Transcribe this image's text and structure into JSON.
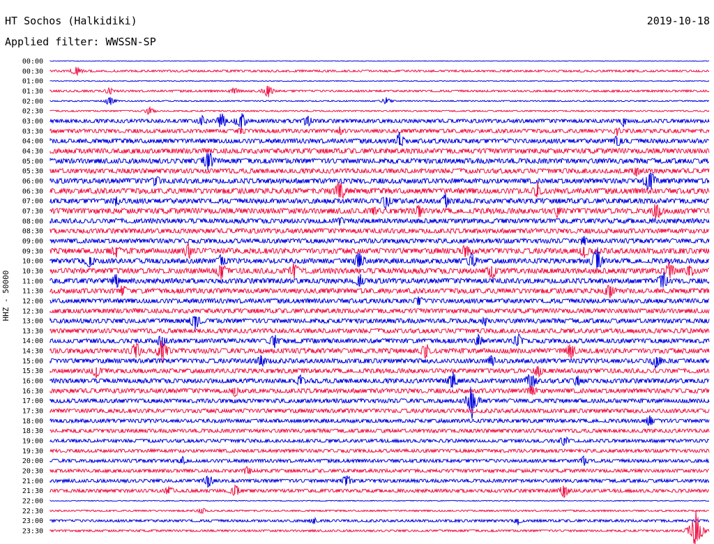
{
  "header": {
    "station": "HT Sochos (Halkidiki)",
    "date": "2019-10-18",
    "filter": "Applied filter: WWSSN-SP"
  },
  "colors": {
    "even_row": "#0000dd",
    "odd_row": "#ee1144"
  },
  "chart_data": {
    "type": "line",
    "title": "HT Sochos (Halkidiki)",
    "subtitle": "Applied filter: WWSSN-SP",
    "date": "2019-10-18",
    "ylabel": "HHZ - 50000",
    "xlabel": "",
    "grid": false,
    "row_minutes": 30,
    "rows": [
      "00:00",
      "00:30",
      "01:00",
      "01:30",
      "02:00",
      "02:30",
      "03:00",
      "03:30",
      "04:00",
      "04:30",
      "05:00",
      "05:30",
      "06:00",
      "06:30",
      "07:00",
      "07:30",
      "08:00",
      "08:30",
      "09:00",
      "09:30",
      "10:00",
      "10:30",
      "11:00",
      "11:30",
      "12:00",
      "12:30",
      "13:00",
      "13:30",
      "14:00",
      "14:30",
      "15:00",
      "15:30",
      "16:00",
      "16:30",
      "17:00",
      "17:30",
      "18:00",
      "18:30",
      "19:00",
      "19:30",
      "20:00",
      "20:30",
      "21:00",
      "21:30",
      "22:00",
      "22:30",
      "23:00",
      "23:30"
    ],
    "noise_levels": [
      0.3,
      1.0,
      0.4,
      1.0,
      0.6,
      0.7,
      1.8,
      1.9,
      2.2,
      2.4,
      2.4,
      2.3,
      2.4,
      2.6,
      2.4,
      2.6,
      2.3,
      2.3,
      2.2,
      2.6,
      2.4,
      2.6,
      2.4,
      2.4,
      2.2,
      2.2,
      2.2,
      2.2,
      2.2,
      2.4,
      2.2,
      2.2,
      2.2,
      2.2,
      2.0,
      2.0,
      1.8,
      1.8,
      1.6,
      1.6,
      1.6,
      1.6,
      1.6,
      1.6,
      0.4,
      0.8,
      1.2,
      1.0
    ],
    "events": [
      {
        "row": 1,
        "x": 0.04,
        "amp": 6
      },
      {
        "row": 3,
        "x": 0.09,
        "amp": 4
      },
      {
        "row": 3,
        "x": 0.28,
        "amp": 5
      },
      {
        "row": 3,
        "x": 0.33,
        "amp": 7
      },
      {
        "row": 4,
        "x": 0.09,
        "amp": 5
      },
      {
        "row": 4,
        "x": 0.51,
        "amp": 4
      },
      {
        "row": 5,
        "x": 0.15,
        "amp": 5
      },
      {
        "row": 6,
        "x": 0.23,
        "amp": 6
      },
      {
        "row": 6,
        "x": 0.26,
        "amp": 9
      },
      {
        "row": 6,
        "x": 0.29,
        "amp": 11
      },
      {
        "row": 6,
        "x": 0.39,
        "amp": 7
      },
      {
        "row": 6,
        "x": 0.87,
        "amp": 6
      },
      {
        "row": 7,
        "x": 0.29,
        "amp": 5
      },
      {
        "row": 7,
        "x": 0.44,
        "amp": 5
      },
      {
        "row": 7,
        "x": 0.86,
        "amp": 5
      },
      {
        "row": 8,
        "x": 0.53,
        "amp": 9
      },
      {
        "row": 8,
        "x": 0.86,
        "amp": 8
      },
      {
        "row": 10,
        "x": 0.24,
        "amp": 13
      },
      {
        "row": 11,
        "x": 0.89,
        "amp": 6
      },
      {
        "row": 12,
        "x": 0.16,
        "amp": 7
      },
      {
        "row": 12,
        "x": 0.91,
        "amp": 14
      },
      {
        "row": 13,
        "x": 0.44,
        "amp": 13
      },
      {
        "row": 13,
        "x": 0.74,
        "amp": 9
      },
      {
        "row": 14,
        "x": 0.1,
        "amp": 6
      },
      {
        "row": 14,
        "x": 0.51,
        "amp": 9
      },
      {
        "row": 14,
        "x": 0.6,
        "amp": 8
      },
      {
        "row": 15,
        "x": 0.49,
        "amp": 6
      },
      {
        "row": 15,
        "x": 0.56,
        "amp": 8
      },
      {
        "row": 15,
        "x": 0.77,
        "amp": 7
      },
      {
        "row": 15,
        "x": 0.92,
        "amp": 11
      },
      {
        "row": 16,
        "x": 0.44,
        "amp": 5
      },
      {
        "row": 18,
        "x": 0.81,
        "amp": 6
      },
      {
        "row": 19,
        "x": 0.1,
        "amp": 8
      },
      {
        "row": 19,
        "x": 0.21,
        "amp": 9
      },
      {
        "row": 19,
        "x": 0.63,
        "amp": 8
      },
      {
        "row": 19,
        "x": 0.81,
        "amp": 9
      },
      {
        "row": 20,
        "x": 0.06,
        "amp": 9
      },
      {
        "row": 20,
        "x": 0.26,
        "amp": 8
      },
      {
        "row": 20,
        "x": 0.47,
        "amp": 11
      },
      {
        "row": 20,
        "x": 0.64,
        "amp": 9
      },
      {
        "row": 20,
        "x": 0.83,
        "amp": 15
      },
      {
        "row": 21,
        "x": 0.26,
        "amp": 10
      },
      {
        "row": 21,
        "x": 0.37,
        "amp": 10
      },
      {
        "row": 21,
        "x": 0.67,
        "amp": 11
      },
      {
        "row": 21,
        "x": 0.94,
        "amp": 10
      },
      {
        "row": 21,
        "x": 0.97,
        "amp": 10
      },
      {
        "row": 22,
        "x": 0.1,
        "amp": 8
      },
      {
        "row": 22,
        "x": 0.47,
        "amp": 8
      },
      {
        "row": 22,
        "x": 0.93,
        "amp": 11
      },
      {
        "row": 23,
        "x": 0.11,
        "amp": 7
      },
      {
        "row": 23,
        "x": 0.85,
        "amp": 10
      },
      {
        "row": 24,
        "x": 0.56,
        "amp": 7
      },
      {
        "row": 26,
        "x": 0.22,
        "amp": 10
      },
      {
        "row": 26,
        "x": 0.66,
        "amp": 6
      },
      {
        "row": 28,
        "x": 0.17,
        "amp": 9
      },
      {
        "row": 28,
        "x": 0.34,
        "amp": 8
      },
      {
        "row": 28,
        "x": 0.65,
        "amp": 8
      },
      {
        "row": 28,
        "x": 0.71,
        "amp": 9
      },
      {
        "row": 29,
        "x": 0.13,
        "amp": 10
      },
      {
        "row": 29,
        "x": 0.17,
        "amp": 14
      },
      {
        "row": 29,
        "x": 0.57,
        "amp": 9
      },
      {
        "row": 29,
        "x": 0.79,
        "amp": 9
      },
      {
        "row": 30,
        "x": 0.32,
        "amp": 8
      },
      {
        "row": 30,
        "x": 0.67,
        "amp": 7
      },
      {
        "row": 30,
        "x": 0.92,
        "amp": 9
      },
      {
        "row": 31,
        "x": 0.07,
        "amp": 8
      },
      {
        "row": 31,
        "x": 0.74,
        "amp": 8
      },
      {
        "row": 32,
        "x": 0.38,
        "amp": 7
      },
      {
        "row": 32,
        "x": 0.61,
        "amp": 11
      },
      {
        "row": 32,
        "x": 0.73,
        "amp": 11
      },
      {
        "row": 32,
        "x": 0.8,
        "amp": 7
      },
      {
        "row": 33,
        "x": 0.28,
        "amp": 7
      },
      {
        "row": 33,
        "x": 0.73,
        "amp": 8
      },
      {
        "row": 34,
        "x": 0.64,
        "amp": 18
      },
      {
        "row": 36,
        "x": 0.91,
        "amp": 6
      },
      {
        "row": 38,
        "x": 0.78,
        "amp": 6
      },
      {
        "row": 40,
        "x": 0.2,
        "amp": 5
      },
      {
        "row": 40,
        "x": 0.81,
        "amp": 6
      },
      {
        "row": 41,
        "x": 0.3,
        "amp": 6
      },
      {
        "row": 42,
        "x": 0.24,
        "amp": 8
      },
      {
        "row": 42,
        "x": 0.45,
        "amp": 7
      },
      {
        "row": 43,
        "x": 0.18,
        "amp": 6
      },
      {
        "row": 43,
        "x": 0.28,
        "amp": 8
      },
      {
        "row": 43,
        "x": 0.78,
        "amp": 8
      },
      {
        "row": 45,
        "x": 0.23,
        "amp": 4
      },
      {
        "row": 46,
        "x": 0.4,
        "amp": 4
      },
      {
        "row": 46,
        "x": 0.71,
        "amp": 4
      },
      {
        "row": 47,
        "x": 0.98,
        "amp": 20
      }
    ]
  }
}
